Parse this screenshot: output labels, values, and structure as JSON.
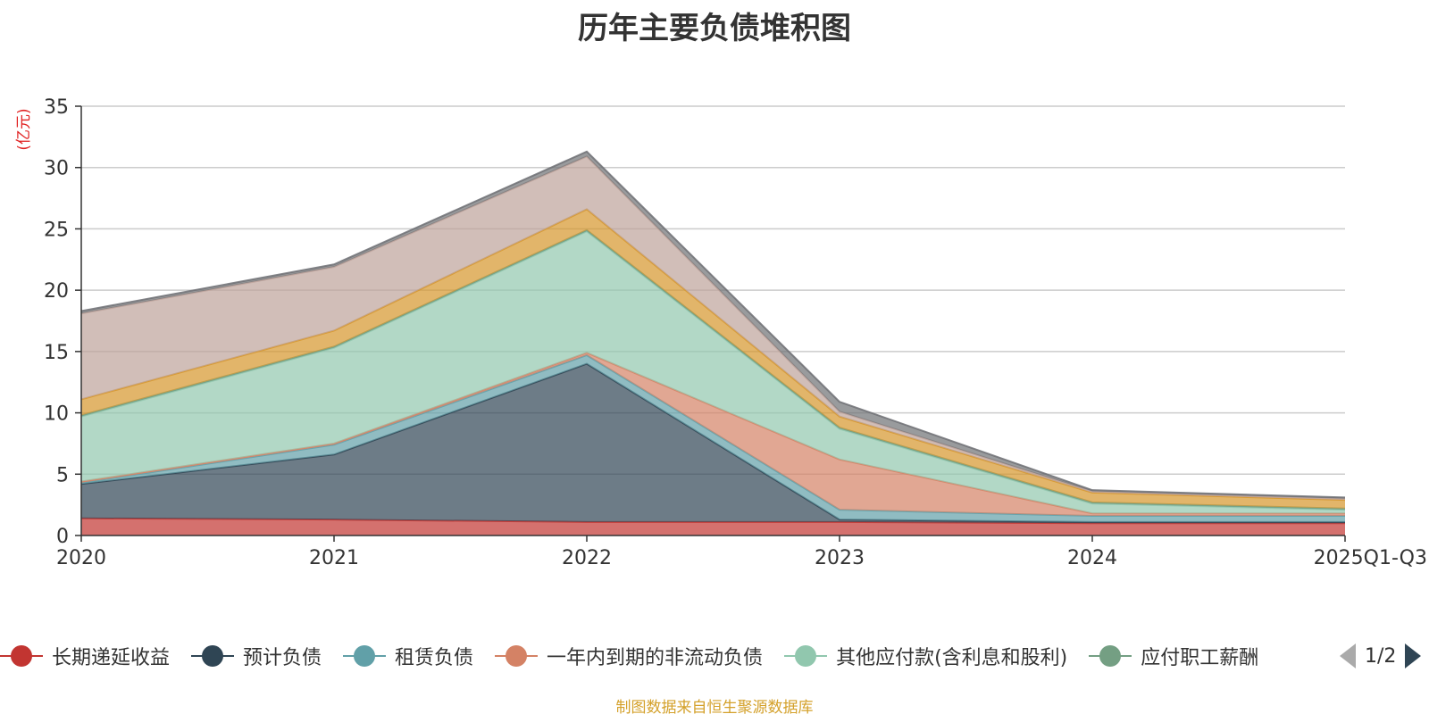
{
  "title": "历年主要负债堆积图",
  "source_note": "制图数据来自恒生聚源数据库",
  "legend_page": "1/2",
  "chart_data": {
    "type": "area",
    "stacked": true,
    "title": "历年主要负债堆积图",
    "ylabel": "(亿元)",
    "xlabel": "",
    "ylim": [
      0,
      35
    ],
    "yticks": [
      0,
      5,
      10,
      15,
      20,
      25,
      30,
      35
    ],
    "grid": true,
    "legend_position": "bottom",
    "categories": [
      "2020",
      "2021",
      "2022",
      "2023",
      "2024",
      "2025Q1-Q3"
    ],
    "series": [
      {
        "name": "长期递延收益",
        "color": "#c23531",
        "values": [
          1.4,
          1.3,
          1.1,
          1.1,
          1.0,
          1.0
        ]
      },
      {
        "name": "预计负债",
        "color": "#2f4554",
        "values": [
          2.8,
          5.3,
          12.9,
          0.2,
          0.1,
          0.1
        ]
      },
      {
        "name": "租赁负债",
        "color": "#61a0a8",
        "values": [
          0.1,
          0.8,
          0.7,
          0.8,
          0.5,
          0.5
        ]
      },
      {
        "name": "一年内到期的非流动负债",
        "color": "#d48265",
        "values": [
          0.1,
          0.1,
          0.2,
          4.1,
          0.2,
          0.2
        ]
      },
      {
        "name": "其他应付款(含利息和股利)",
        "color": "#91c7ae",
        "values": [
          5.3,
          7.8,
          9.9,
          2.5,
          0.8,
          0.3
        ]
      },
      {
        "name": "应付职工薪酬",
        "color": "#749f83",
        "values": [
          0.1,
          0.1,
          0.1,
          0.1,
          0.1,
          0.1
        ]
      },
      {
        "name": "",
        "color": "#d6962b",
        "values": [
          1.3,
          1.3,
          1.7,
          0.9,
          0.8,
          0.7
        ]
      },
      {
        "name": "",
        "color": "#bda29a",
        "values": [
          7.0,
          5.2,
          4.3,
          0.4,
          0.1,
          0.1
        ]
      },
      {
        "name": "",
        "color": "#6e7074",
        "values": [
          0.2,
          0.2,
          0.4,
          0.8,
          0.1,
          0.1
        ]
      }
    ]
  }
}
